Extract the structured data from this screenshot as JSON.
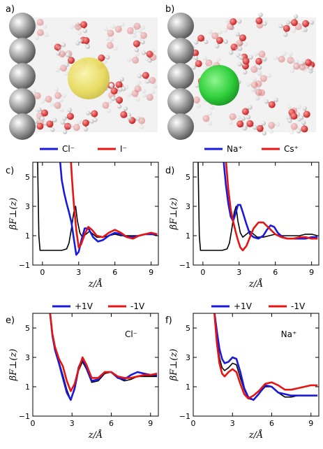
{
  "panels": [
    {
      "label": "a)"
    },
    {
      "label": "b)"
    }
  ],
  "colors": {
    "blue": "#1a1adc",
    "red": "#e81414",
    "black": "#000000",
    "electrode": "#5a5a5a",
    "cl_ion": "#e8d84a",
    "na_ion": "#2fcf3a",
    "oxygen": "#d42a2a",
    "hydrogen": "#e8e8e8"
  },
  "chart_data": [
    {
      "type": "line",
      "panel": "c)",
      "title": "",
      "xlabel": "z/Å",
      "ylabel": "βF⊥(z)",
      "xlim": [
        -0.8,
        9.6
      ],
      "ylim": [
        -1,
        6
      ],
      "xticks": [
        0,
        3,
        6,
        9
      ],
      "yticks": [
        -1,
        1,
        3,
        5
      ],
      "legend": "top",
      "grid": false,
      "series": [
        {
          "name": "Cl⁻",
          "color": "blue",
          "x": [
            1.45,
            1.6,
            1.8,
            2.0,
            2.2,
            2.4,
            2.6,
            2.8,
            3.0,
            3.2,
            3.5,
            3.8,
            4.2,
            4.6,
            5.0,
            5.5,
            6.0,
            6.5,
            7.0,
            7.5,
            8.0,
            8.5,
            9.0,
            9.5
          ],
          "y": [
            6.2,
            4.8,
            3.9,
            3.2,
            2.6,
            1.9,
            0.8,
            -0.3,
            -0.1,
            0.6,
            1.5,
            1.5,
            0.9,
            0.6,
            0.7,
            1.0,
            1.2,
            1.1,
            0.9,
            0.9,
            1.0,
            1.1,
            1.1,
            1.1
          ]
        },
        {
          "name": "I⁻",
          "color": "red",
          "x": [
            2.35,
            2.45,
            2.6,
            2.8,
            3.0,
            3.2,
            3.5,
            3.8,
            4.1,
            4.5,
            5.0,
            5.5,
            6.0,
            6.5,
            7.0,
            7.5,
            8.0,
            8.5,
            9.0,
            9.5
          ],
          "y": [
            6.2,
            4.8,
            3.2,
            1.4,
            0.2,
            0.4,
            1.1,
            1.6,
            1.4,
            1.0,
            0.9,
            1.2,
            1.4,
            1.2,
            0.9,
            0.8,
            1.0,
            1.1,
            1.2,
            1.1
          ]
        },
        {
          "name": "",
          "color": "black",
          "x": [
            -0.4,
            -0.35,
            -0.3,
            -0.2,
            0.0,
            0.3,
            0.8,
            1.2,
            1.6,
            2.0,
            2.2,
            2.4,
            2.6,
            2.75,
            2.9,
            3.1,
            3.3,
            3.6,
            3.9,
            4.2,
            4.5,
            5.0,
            5.5,
            6.0,
            6.5,
            7.0,
            7.5,
            8.0,
            8.5,
            9.0,
            9.5
          ],
          "y": [
            6.2,
            3.5,
            1.0,
            0.0,
            0.0,
            0.0,
            0.0,
            0.0,
            0.0,
            0.1,
            0.5,
            1.5,
            2.6,
            3.0,
            2.0,
            1.2,
            0.9,
            1.1,
            1.3,
            1.1,
            0.9,
            0.9,
            1.0,
            1.1,
            1.0,
            1.0,
            1.0,
            1.0,
            1.1,
            1.1,
            1.0
          ]
        }
      ]
    },
    {
      "type": "line",
      "panel": "d)",
      "title": "",
      "xlabel": "z/Å",
      "ylabel": "βF⊥(z)",
      "xlim": [
        -0.8,
        9.6
      ],
      "ylim": [
        -1,
        6
      ],
      "xticks": [
        0,
        3,
        6,
        9
      ],
      "yticks": [
        -1,
        1,
        3,
        5
      ],
      "legend": "top",
      "grid": false,
      "series": [
        {
          "name": "Na⁺",
          "color": "blue",
          "x": [
            1.7,
            1.9,
            2.1,
            2.3,
            2.5,
            2.7,
            2.9,
            3.1,
            3.3,
            3.6,
            3.9,
            4.2,
            4.6,
            5.0,
            5.3,
            5.6,
            5.9,
            6.2,
            6.6,
            7.0,
            7.5,
            8.0,
            8.5,
            9.0,
            9.5
          ],
          "y": [
            6.2,
            4.5,
            3.2,
            2.3,
            2.0,
            2.5,
            3.1,
            3.1,
            2.6,
            1.8,
            1.1,
            0.9,
            0.8,
            1.0,
            1.4,
            1.7,
            1.6,
            1.2,
            0.9,
            0.8,
            0.8,
            0.8,
            0.8,
            0.9,
            0.9
          ]
        },
        {
          "name": "Cs⁺",
          "color": "red",
          "x": [
            1.9,
            2.1,
            2.3,
            2.5,
            2.7,
            2.9,
            3.1,
            3.3,
            3.6,
            3.9,
            4.2,
            4.6,
            5.0,
            5.5,
            6.0,
            6.5,
            7.0,
            7.5,
            8.0,
            8.5,
            9.0,
            9.5
          ],
          "y": [
            6.2,
            4.2,
            2.8,
            2.0,
            1.3,
            0.7,
            0.2,
            0.0,
            0.3,
            0.9,
            1.5,
            1.9,
            1.9,
            1.5,
            1.1,
            0.9,
            0.8,
            0.8,
            0.9,
            0.9,
            0.8,
            0.8
          ]
        },
        {
          "name": "",
          "color": "black",
          "x": [
            -0.4,
            -0.35,
            -0.3,
            -0.2,
            0.0,
            0.3,
            0.8,
            1.2,
            1.6,
            2.0,
            2.2,
            2.4,
            2.6,
            2.75,
            2.9,
            3.1,
            3.3,
            3.6,
            3.9,
            4.2,
            4.5,
            5.0,
            5.5,
            6.0,
            6.5,
            7.0,
            7.5,
            8.0,
            8.5,
            9.0,
            9.5
          ],
          "y": [
            6.2,
            3.5,
            1.0,
            0.0,
            0.0,
            0.0,
            0.0,
            0.0,
            0.0,
            0.1,
            0.5,
            1.5,
            2.6,
            3.0,
            2.0,
            1.2,
            0.9,
            1.1,
            1.3,
            1.1,
            0.9,
            0.9,
            1.0,
            1.1,
            1.0,
            1.0,
            1.0,
            1.0,
            1.1,
            1.1,
            1.0
          ]
        }
      ]
    },
    {
      "type": "line",
      "panel": "e)",
      "annotation": "Cl⁻",
      "title": "",
      "xlabel": "z/Å",
      "ylabel": "βF⊥(z)",
      "xlim": [
        0,
        9.6
      ],
      "ylim": [
        -1,
        6
      ],
      "xticks": [
        0,
        3,
        6,
        9
      ],
      "yticks": [
        -1,
        1,
        3,
        5
      ],
      "legend": "top",
      "grid": false,
      "series": [
        {
          "name": "+1V",
          "color": "blue",
          "x": [
            1.3,
            1.5,
            1.7,
            2.0,
            2.3,
            2.6,
            2.9,
            3.2,
            3.5,
            3.8,
            4.1,
            4.5,
            5.0,
            5.5,
            6.0,
            6.5,
            7.0,
            7.5,
            8.0,
            8.5,
            9.0,
            9.5
          ],
          "y": [
            6.2,
            4.5,
            3.5,
            2.6,
            1.6,
            0.6,
            0.1,
            0.9,
            2.3,
            2.9,
            2.3,
            1.4,
            1.5,
            2.0,
            2.0,
            1.6,
            1.5,
            1.8,
            2.0,
            1.9,
            1.8,
            1.8
          ]
        },
        {
          "name": "-1V",
          "color": "red",
          "x": [
            1.3,
            1.5,
            1.7,
            2.0,
            2.3,
            2.6,
            2.9,
            3.2,
            3.5,
            3.8,
            4.1,
            4.5,
            5.0,
            5.5,
            6.0,
            6.5,
            7.0,
            7.5,
            8.0,
            8.5,
            9.0,
            9.5
          ],
          "y": [
            6.2,
            4.6,
            3.7,
            2.9,
            2.4,
            1.4,
            0.7,
            1.2,
            2.2,
            3.0,
            2.5,
            1.6,
            1.6,
            2.0,
            2.0,
            1.7,
            1.6,
            1.6,
            1.7,
            1.8,
            1.8,
            1.9
          ]
        },
        {
          "name": "",
          "color": "black",
          "x": [
            1.3,
            1.5,
            1.7,
            2.0,
            2.3,
            2.6,
            2.9,
            3.2,
            3.5,
            3.8,
            4.1,
            4.5,
            5.0,
            5.5,
            6.0,
            6.5,
            7.0,
            7.5,
            8.0,
            8.5,
            9.0,
            9.5
          ],
          "y": [
            6.2,
            4.4,
            3.5,
            2.7,
            1.8,
            0.8,
            0.1,
            0.8,
            2.1,
            2.7,
            2.2,
            1.3,
            1.4,
            1.9,
            2.0,
            1.6,
            1.4,
            1.5,
            1.7,
            1.7,
            1.7,
            1.7
          ]
        }
      ]
    },
    {
      "type": "line",
      "panel": "f)",
      "annotation": "Na⁺",
      "title": "",
      "xlabel": "z/Å",
      "ylabel": "βF⊥(z)",
      "xlim": [
        0,
        9.6
      ],
      "ylim": [
        -1,
        6
      ],
      "xticks": [
        0,
        3,
        6,
        9
      ],
      "yticks": [
        -1,
        1,
        3,
        5
      ],
      "legend": "top",
      "grid": false,
      "series": [
        {
          "name": "+1V",
          "color": "blue",
          "x": [
            1.6,
            1.8,
            2.0,
            2.2,
            2.4,
            2.7,
            3.0,
            3.3,
            3.6,
            3.9,
            4.2,
            4.6,
            5.0,
            5.5,
            6.0,
            6.5,
            7.0,
            7.5,
            8.0,
            8.5,
            9.0,
            9.5
          ],
          "y": [
            6.2,
            4.8,
            3.6,
            2.9,
            2.6,
            2.7,
            3.0,
            2.9,
            2.0,
            0.9,
            0.3,
            0.1,
            0.5,
            1.1,
            1.0,
            0.6,
            0.5,
            0.4,
            0.4,
            0.4,
            0.4,
            0.4
          ]
        },
        {
          "name": "-1V",
          "color": "red",
          "x": [
            1.6,
            1.8,
            2.0,
            2.2,
            2.4,
            2.7,
            3.0,
            3.3,
            3.6,
            3.9,
            4.2,
            4.6,
            5.0,
            5.5,
            6.0,
            6.5,
            7.0,
            7.5,
            8.0,
            8.5,
            9.0,
            9.5
          ],
          "y": [
            6.2,
            4.0,
            2.6,
            1.9,
            1.7,
            2.0,
            2.2,
            2.0,
            1.2,
            0.5,
            0.2,
            0.4,
            0.7,
            1.2,
            1.3,
            1.1,
            0.8,
            0.8,
            0.9,
            1.0,
            1.1,
            1.1
          ]
        },
        {
          "name": "",
          "color": "black",
          "x": [
            1.6,
            1.8,
            2.0,
            2.2,
            2.4,
            2.7,
            3.0,
            3.3,
            3.6,
            3.9,
            4.2,
            4.6,
            5.0,
            5.5,
            6.0,
            6.5,
            7.0,
            7.5,
            8.0,
            8.5,
            9.0,
            9.5
          ],
          "y": [
            6.2,
            4.4,
            3.0,
            2.3,
            2.1,
            2.3,
            2.6,
            2.5,
            1.6,
            0.8,
            0.2,
            0.1,
            0.5,
            1.0,
            1.0,
            0.6,
            0.3,
            0.3,
            0.4,
            0.4,
            0.4,
            0.4
          ]
        }
      ]
    }
  ]
}
